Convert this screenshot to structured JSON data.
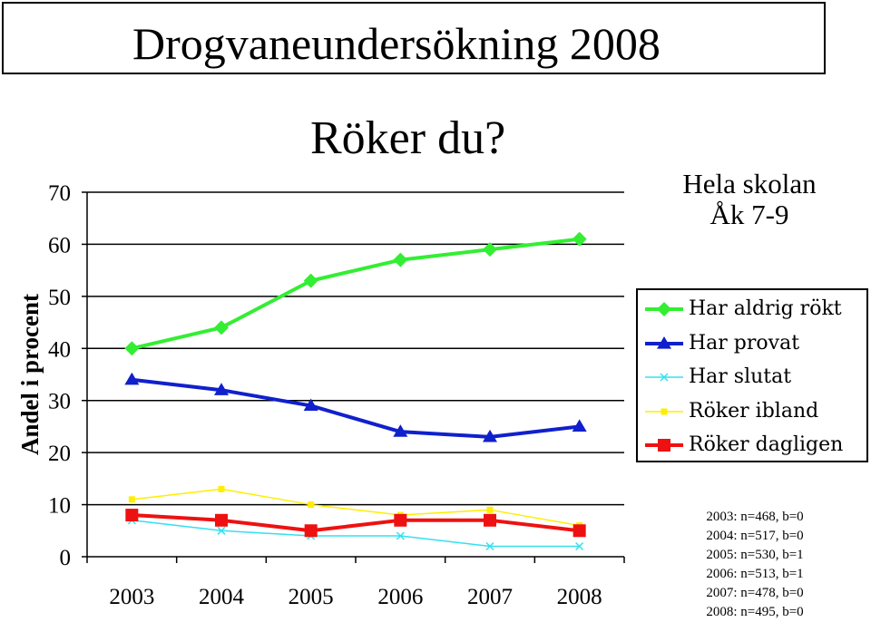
{
  "header": {
    "title": "Drogvaneundersökning 2008",
    "subtitle": "Röker du?",
    "scope_line1": "Hela skolan",
    "scope_line2": "Åk 7-9"
  },
  "sample_notes": [
    "2003: n=468, b=0",
    "2004: n=517, b=0",
    "2005: n=530, b=1",
    "2006: n=513, b=1",
    "2007: n=478, b=0",
    "2008: n=495, b=0"
  ],
  "chart_data": {
    "type": "line",
    "title": "Röker du?",
    "xlabel": "",
    "ylabel": "Andel i procent",
    "x": [
      "2003",
      "2004",
      "2005",
      "2006",
      "2007",
      "2008"
    ],
    "ylim": [
      0,
      70
    ],
    "yticks": [
      0,
      10,
      20,
      30,
      40,
      50,
      60,
      70
    ],
    "grid": "horizontal",
    "legend_position": "right",
    "series": [
      {
        "name": "Har aldrig rökt",
        "values": [
          40,
          44,
          53,
          57,
          59,
          61
        ],
        "color": "#33ee33",
        "marker": "diamond"
      },
      {
        "name": "Har provat",
        "values": [
          34,
          32,
          29,
          24,
          23,
          25
        ],
        "color": "#1020cc",
        "marker": "triangle"
      },
      {
        "name": "Har slutat",
        "values": [
          7,
          5,
          4,
          4,
          2,
          2
        ],
        "color": "#33e0f0",
        "marker": "x"
      },
      {
        "name": "Röker ibland",
        "values": [
          11,
          13,
          10,
          8,
          9,
          6
        ],
        "color": "#ffee00",
        "marker": "square"
      },
      {
        "name": "Röker dagligen",
        "values": [
          8,
          7,
          5,
          7,
          7,
          5
        ],
        "color": "#ee1111",
        "marker": "square"
      }
    ]
  }
}
